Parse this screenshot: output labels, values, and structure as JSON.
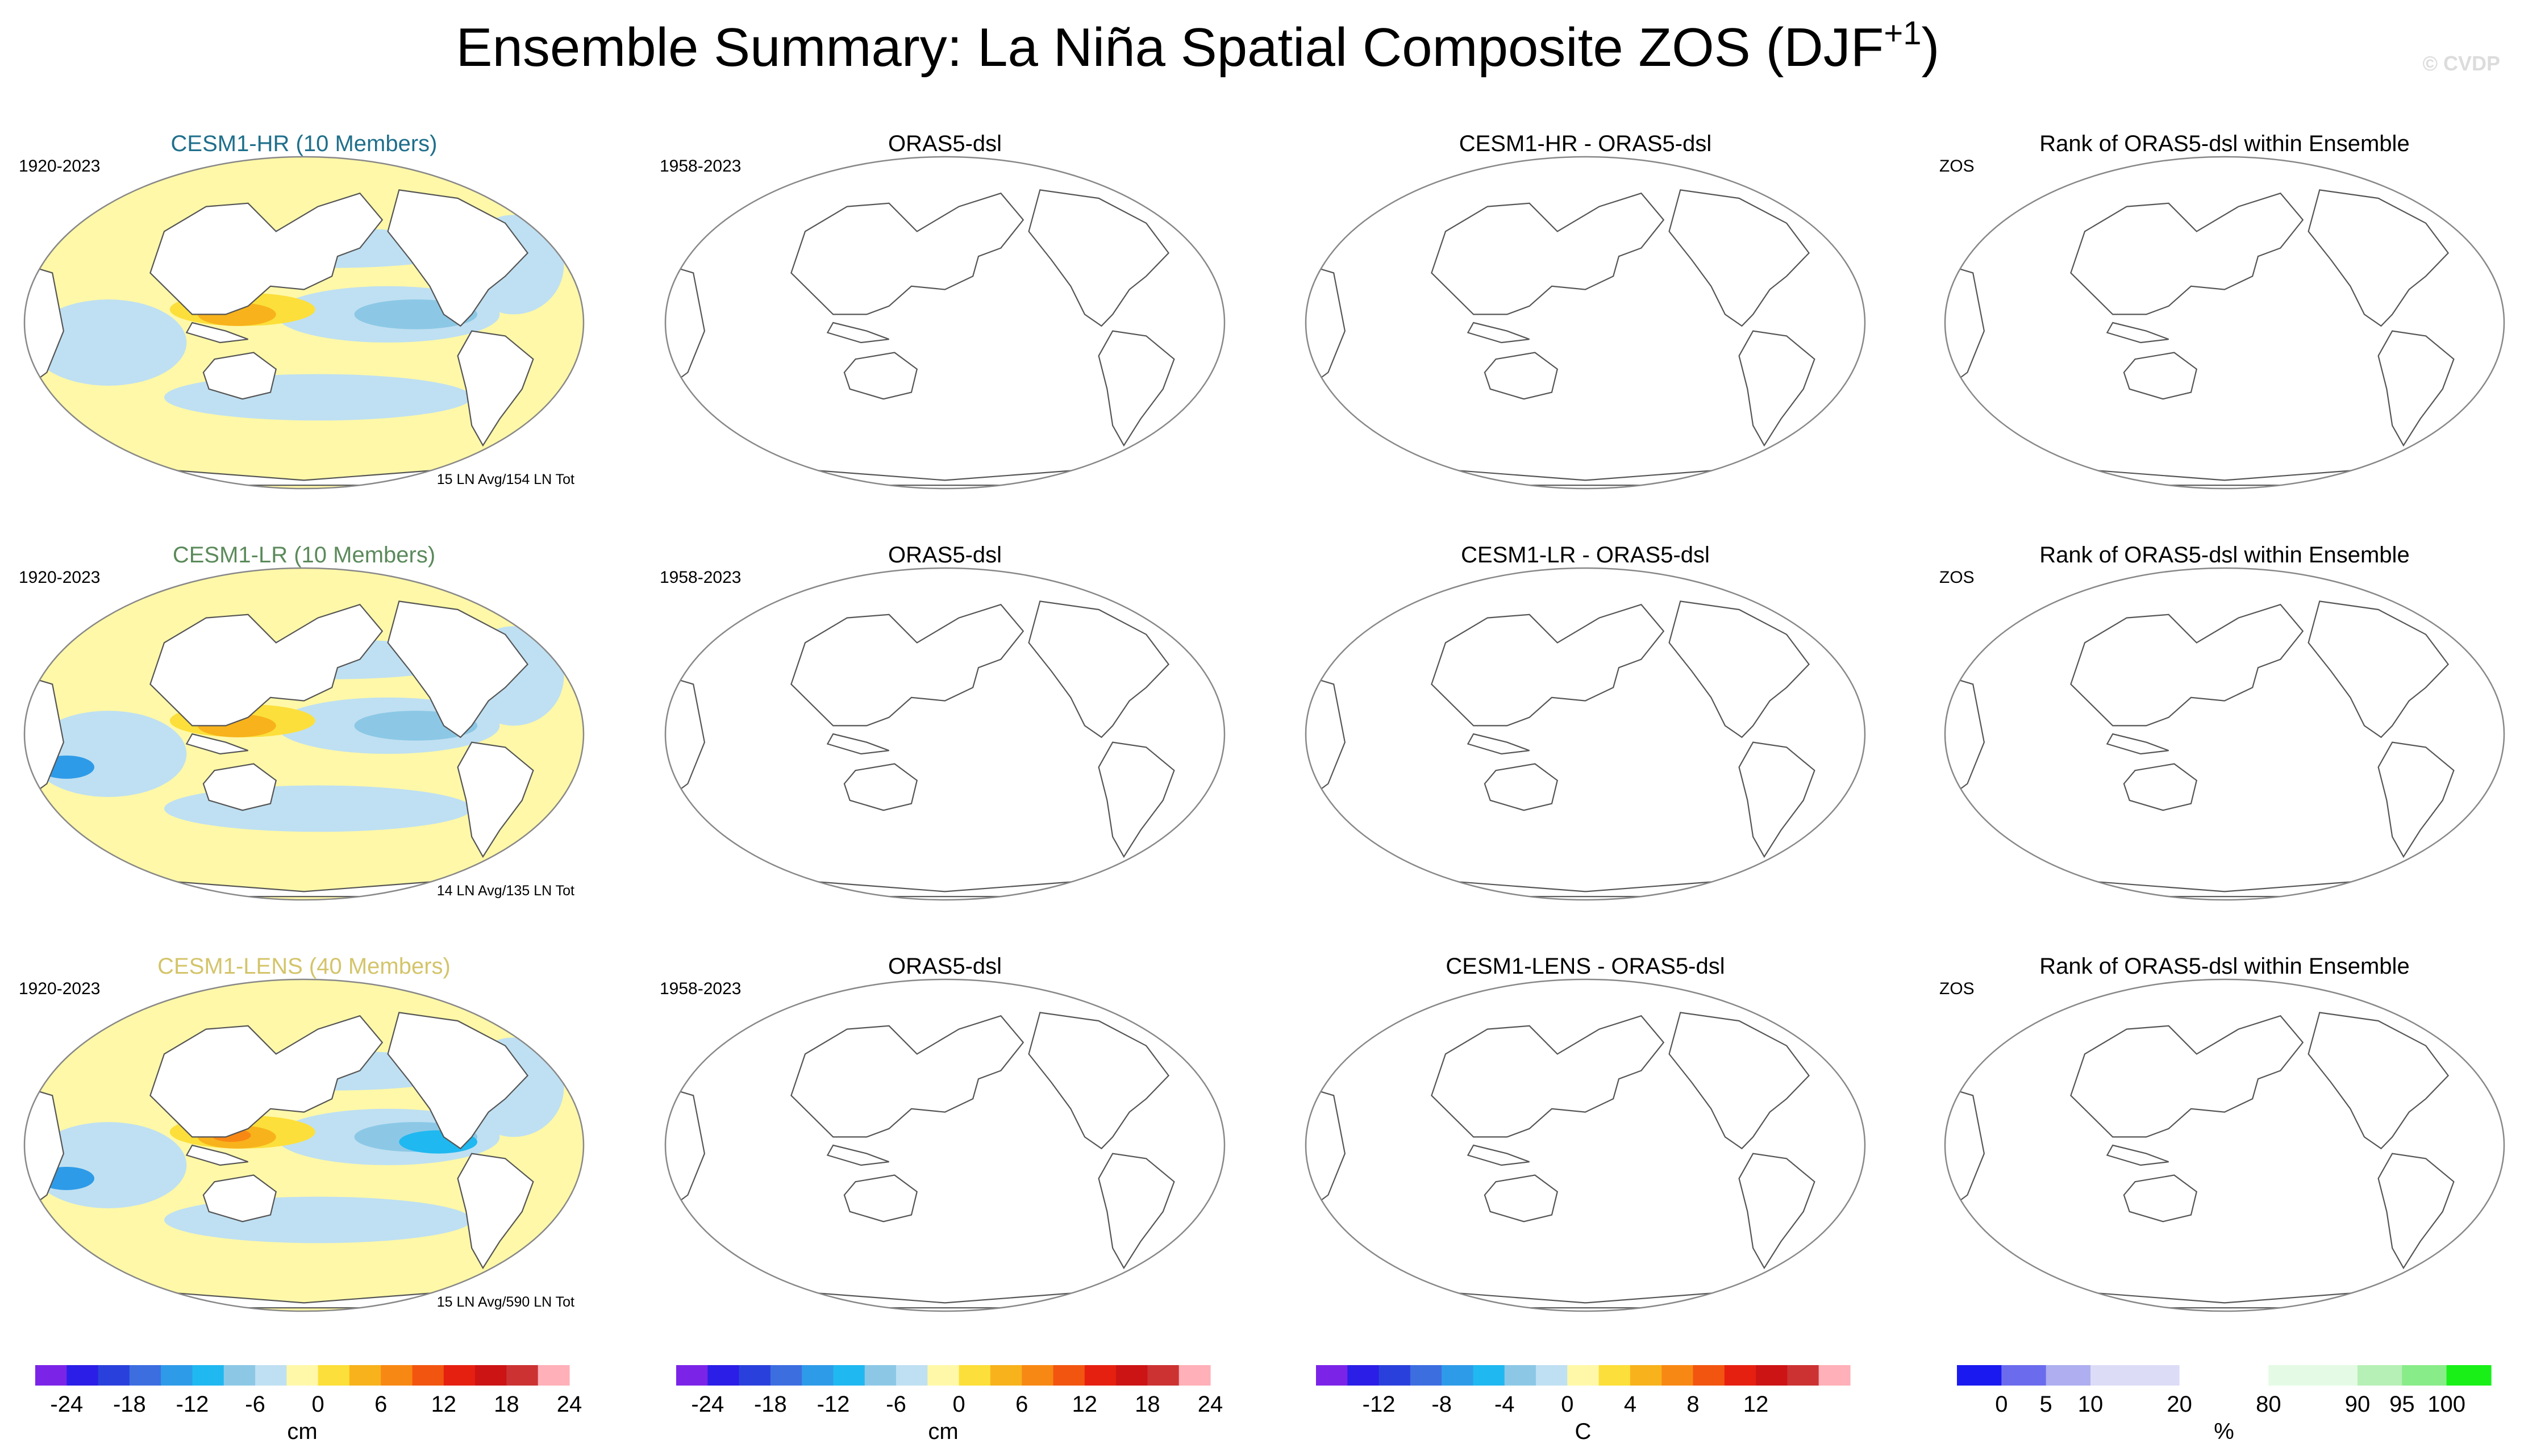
{
  "figure": {
    "title": "Ensemble Summary: La Niña Spatial Composite ZOS (DJF",
    "title_superscript": "+1",
    "title_close": ")",
    "watermark": "© CVDP"
  },
  "chart_data": [
    {
      "type": "heatmap",
      "row": 0,
      "col": 0,
      "kind": "model",
      "title": "CESM1-HR (10 Members)",
      "title_color": "#1f6f8b",
      "left_label": "1920-2023",
      "note": "15 LN Avg/154 LN Tot",
      "variable": "ZOS",
      "units": "cm"
    },
    {
      "type": "heatmap",
      "row": 0,
      "col": 1,
      "kind": "blank",
      "title": "ORAS5-dsl",
      "left_label": "1958-2023"
    },
    {
      "type": "heatmap",
      "row": 0,
      "col": 2,
      "kind": "blank",
      "title": "CESM1-HR - ORAS5-dsl",
      "left_label": ""
    },
    {
      "type": "heatmap",
      "row": 0,
      "col": 3,
      "kind": "blank",
      "title": "Rank of ORAS5-dsl within Ensemble",
      "left_label": "ZOS"
    },
    {
      "type": "heatmap",
      "row": 1,
      "col": 0,
      "kind": "model",
      "title": "CESM1-LR (10 Members)",
      "title_color": "#5b8a5b",
      "left_label": "1920-2023",
      "note": "14 LN Avg/135 LN Tot",
      "variable": "ZOS",
      "units": "cm"
    },
    {
      "type": "heatmap",
      "row": 1,
      "col": 1,
      "kind": "blank",
      "title": "ORAS5-dsl",
      "left_label": "1958-2023"
    },
    {
      "type": "heatmap",
      "row": 1,
      "col": 2,
      "kind": "blank",
      "title": "CESM1-LR - ORAS5-dsl",
      "left_label": ""
    },
    {
      "type": "heatmap",
      "row": 1,
      "col": 3,
      "kind": "blank",
      "title": "Rank of ORAS5-dsl within Ensemble",
      "left_label": "ZOS"
    },
    {
      "type": "heatmap",
      "row": 2,
      "col": 0,
      "kind": "model",
      "title": "CESM1-LENS (40 Members)",
      "title_color": "#d4c46a",
      "left_label": "1920-2023",
      "note": "15 LN Avg/590 LN Tot",
      "variable": "ZOS",
      "units": "cm"
    },
    {
      "type": "heatmap",
      "row": 2,
      "col": 1,
      "kind": "blank",
      "title": "ORAS5-dsl",
      "left_label": "1958-2023"
    },
    {
      "type": "heatmap",
      "row": 2,
      "col": 2,
      "kind": "blank",
      "title": "CESM1-LENS - ORAS5-dsl",
      "left_label": ""
    },
    {
      "type": "heatmap",
      "row": 2,
      "col": 3,
      "kind": "blank",
      "title": "Rank of ORAS5-dsl within Ensemble",
      "left_label": "ZOS"
    }
  ],
  "colorbars": [
    {
      "colors": [
        "#7b24e8",
        "#2b1ee6",
        "#2a40dc",
        "#3c6ee0",
        "#2e9be8",
        "#20b8f0",
        "#8cc8e6",
        "#bfe0f2",
        "#fff8a8",
        "#fcdf3a",
        "#f8b21c",
        "#f88814",
        "#f25510",
        "#e62010",
        "#cc1414",
        "#cc3232",
        "#ffb0b8"
      ],
      "ticks": [
        "-24",
        "-18",
        "-12",
        "-6",
        "0",
        "6",
        "12",
        "18",
        "24"
      ],
      "tick_positions": [
        1,
        3,
        5,
        7,
        9,
        11,
        13,
        15,
        17
      ],
      "label": "cm"
    },
    {
      "colors": [
        "#7b24e8",
        "#2b1ee6",
        "#2a40dc",
        "#3c6ee0",
        "#2e9be8",
        "#20b8f0",
        "#8cc8e6",
        "#bfe0f2",
        "#fff8a8",
        "#fcdf3a",
        "#f8b21c",
        "#f88814",
        "#f25510",
        "#e62010",
        "#cc1414",
        "#cc3232",
        "#ffb0b8"
      ],
      "ticks": [
        "-24",
        "-18",
        "-12",
        "-6",
        "0",
        "6",
        "12",
        "18",
        "24"
      ],
      "tick_positions": [
        1,
        3,
        5,
        7,
        9,
        11,
        13,
        15,
        17
      ],
      "label": "cm"
    },
    {
      "colors": [
        "#7b24e8",
        "#2b1ee6",
        "#2a40dc",
        "#3c6ee0",
        "#2e9be8",
        "#20b8f0",
        "#8cc8e6",
        "#bfe0f2",
        "#fff8a8",
        "#fcdf3a",
        "#f8b21c",
        "#f88814",
        "#f25510",
        "#e62010",
        "#cc1414",
        "#cc3232",
        "#ffb0b8"
      ],
      "ticks": [
        "-12",
        "-8",
        "-4",
        "0",
        "4",
        "8",
        "12"
      ],
      "tick_positions": [
        2,
        4,
        6,
        8,
        10,
        12,
        14
      ],
      "label": "C"
    },
    {
      "colors": [
        "#1a1af0",
        "#6b6bee",
        "#aeaef0",
        "#dcdcf6",
        "#dcdcf6",
        "#ffffff",
        "#ffffff",
        "#e4fae4",
        "#e4fae4",
        "#b6f0b6",
        "#88ec88",
        "#18f018"
      ],
      "ticks": [
        "0",
        "5",
        "10",
        "20",
        "80",
        "90",
        "95",
        "100"
      ],
      "tick_positions": [
        1,
        2,
        3,
        5,
        7,
        9,
        10,
        11
      ],
      "label": "%"
    }
  ]
}
